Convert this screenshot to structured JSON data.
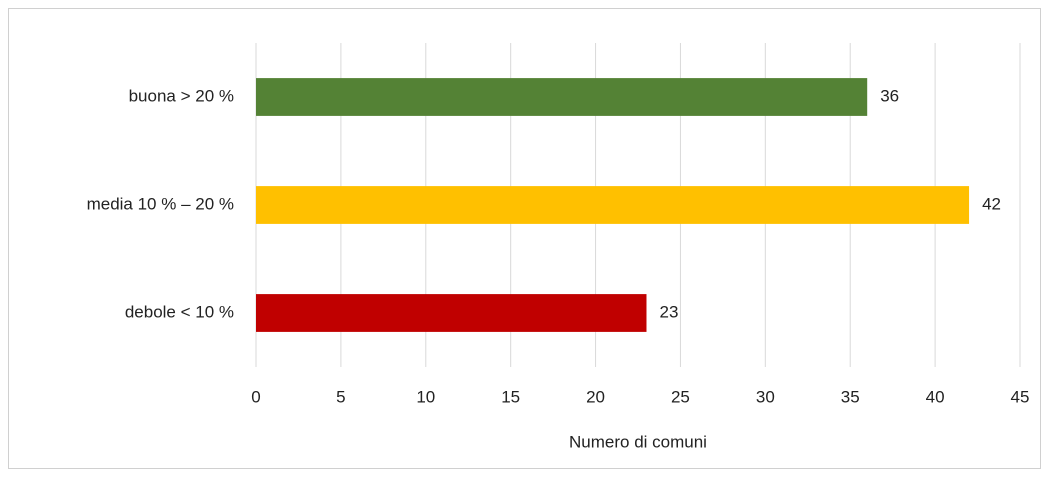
{
  "chart_data": {
    "type": "barh",
    "categories": [
      "buona > 20 %",
      "media 10 % – 20 %",
      "debole < 10 %"
    ],
    "values": [
      36,
      42,
      23
    ],
    "colors": [
      "#548235",
      "#ffc000",
      "#c00000"
    ],
    "xlabel": "Numero di comuni",
    "xlim": [
      0,
      45
    ],
    "xticks": [
      0,
      5,
      10,
      15,
      20,
      25,
      30,
      35,
      40,
      45
    ],
    "grid": true,
    "data_labels": true
  }
}
